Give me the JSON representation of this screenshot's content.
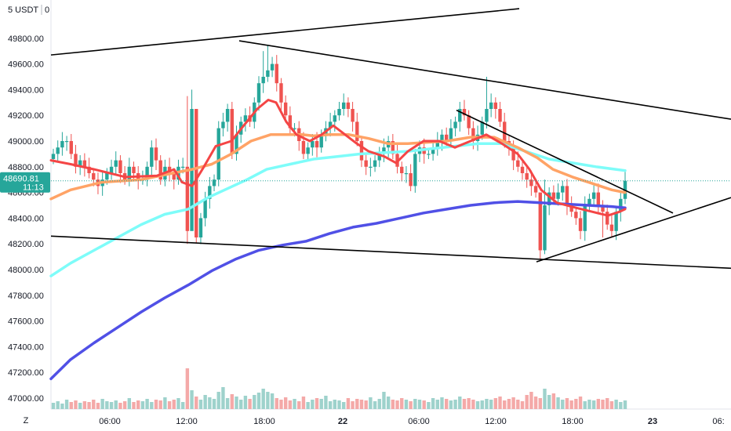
{
  "currency_label": "5 USDT",
  "tz_button": "Z",
  "current_price": {
    "value": "48690.81",
    "countdown": "11:13"
  },
  "colors": {
    "up": "#26a69a",
    "down": "#ef5350",
    "vol_up": "#9ed2cc",
    "vol_down": "#f4a9a8",
    "ema_fast": "#f44545",
    "ema_mid": "#ffa366",
    "ema_slow": "#7efcf9",
    "ema_long": "#5050e6",
    "trendline": "#000000",
    "price_tag": "#26a69a"
  },
  "chart_data": {
    "type": "candlestick",
    "instrument_unit": "USDT",
    "y_ticks": [
      "47000.00",
      "47200.00",
      "47400.00",
      "47600.00",
      "47800.00",
      "48000.00",
      "48200.00",
      "48400.00",
      "48600.00",
      "48800.00",
      "49000.00",
      "49200.00",
      "49400.00",
      "49600.00",
      "49800.00"
    ],
    "x_ticks": [
      "06:00",
      "12:00",
      "18:00",
      "22",
      "06:00",
      "12:00",
      "18:00",
      "23",
      "06:"
    ],
    "ylim": [
      46940,
      50030
    ],
    "last_price": 48690.81,
    "closes": [
      48900,
      48950,
      49000,
      49000,
      48900,
      48800,
      48850,
      48800,
      48750,
      48700,
      48650,
      48700,
      48750,
      48800,
      48850,
      48750,
      48700,
      48800,
      48750,
      48700,
      48700,
      48800,
      48950,
      48850,
      48700,
      48800,
      48750,
      48700,
      48800,
      48800,
      48300,
      49250,
      48250,
      48400,
      48550,
      48650,
      48700,
      49100,
      49150,
      49250,
      48900,
      49050,
      49150,
      49200,
      49150,
      49300,
      49450,
      49500,
      49550,
      49600,
      49450,
      49300,
      49200,
      49100,
      49100,
      49000,
      48900,
      48950,
      49000,
      48950,
      49050,
      49100,
      49150,
      49200,
      49250,
      49300,
      49250,
      49150,
      49000,
      48850,
      48800,
      48800,
      48850,
      48900,
      48950,
      49000,
      48900,
      48800,
      48750,
      48750,
      48650,
      48900,
      48950,
      48900,
      48900,
      48950,
      49000,
      49050,
      49000,
      49100,
      49150,
      49250,
      49200,
      49100,
      49000,
      49050,
      49150,
      49250,
      49300,
      49250,
      49150,
      49000,
      48950,
      48850,
      48800,
      48750,
      48700,
      48650,
      48600,
      48150,
      48500,
      48600,
      48550,
      48600,
      48650,
      48500,
      48450,
      48400,
      48300,
      48500,
      48550,
      48600,
      48500,
      48450,
      48350,
      48300,
      48450,
      48550,
      48690.81
    ],
    "highs_extra": [
      [
        30,
        49350
      ],
      [
        31,
        49400
      ],
      [
        32,
        48250
      ],
      [
        47,
        49700
      ],
      [
        48,
        49750
      ],
      [
        97,
        49500
      ],
      [
        109,
        48550
      ],
      [
        110,
        48700
      ]
    ],
    "lows_extra": [
      [
        31,
        48350
      ],
      [
        30,
        48200
      ],
      [
        109,
        48080
      ],
      [
        110,
        48120
      ],
      [
        123,
        48250
      ],
      [
        126,
        48230
      ]
    ],
    "volumes": [
      8,
      10,
      7,
      12,
      9,
      11,
      8,
      10,
      9,
      12,
      8,
      13,
      10,
      9,
      11,
      8,
      10,
      14,
      9,
      11,
      10,
      13,
      9,
      12,
      11,
      15,
      10,
      12,
      14,
      9,
      52,
      24,
      16,
      12,
      18,
      15,
      13,
      22,
      28,
      14,
      19,
      16,
      12,
      17,
      13,
      18,
      21,
      26,
      22,
      20,
      14,
      12,
      15,
      11,
      13,
      10,
      16,
      9,
      12,
      14,
      13,
      17,
      10,
      12,
      11,
      9,
      14,
      10,
      13,
      12,
      11,
      15,
      10,
      13,
      22,
      16,
      12,
      11,
      14,
      12,
      10,
      13,
      12,
      11,
      9,
      14,
      12,
      15,
      13,
      11,
      12,
      16,
      13,
      14,
      12,
      10,
      11,
      13,
      12,
      14,
      16,
      11,
      13,
      15,
      12,
      10,
      18,
      22,
      16,
      14,
      26,
      18,
      20,
      15,
      12,
      14,
      11,
      13,
      16,
      10,
      12,
      11,
      13,
      12,
      14,
      10,
      12,
      9,
      11
    ],
    "ema_fast": [
      [
        65,
        48850
      ],
      [
        90,
        48820
      ],
      [
        120,
        48780
      ],
      [
        160,
        48720
      ],
      [
        200,
        48730
      ],
      [
        222,
        48780
      ],
      [
        232,
        48680
      ],
      [
        245,
        48650
      ],
      [
        260,
        48800
      ],
      [
        275,
        48960
      ],
      [
        295,
        49000
      ],
      [
        312,
        49130
      ],
      [
        328,
        49250
      ],
      [
        342,
        49320
      ],
      [
        352,
        49300
      ],
      [
        365,
        49150
      ],
      [
        378,
        49050
      ],
      [
        395,
        49000
      ],
      [
        410,
        49050
      ],
      [
        425,
        49120
      ],
      [
        440,
        49050
      ],
      [
        455,
        48980
      ],
      [
        470,
        48920
      ],
      [
        490,
        48880
      ],
      [
        505,
        48830
      ],
      [
        520,
        48920
      ],
      [
        540,
        49000
      ],
      [
        560,
        49000
      ],
      [
        580,
        48950
      ],
      [
        600,
        49000
      ],
      [
        620,
        49050
      ],
      [
        640,
        48980
      ],
      [
        660,
        48900
      ],
      [
        675,
        48780
      ],
      [
        690,
        48620
      ],
      [
        710,
        48520
      ],
      [
        735,
        48480
      ],
      [
        755,
        48450
      ],
      [
        775,
        48420
      ],
      [
        790,
        48450
      ],
      [
        797,
        48470
      ]
    ],
    "ema_mid": [
      [
        65,
        48550
      ],
      [
        90,
        48620
      ],
      [
        130,
        48680
      ],
      [
        180,
        48700
      ],
      [
        220,
        48750
      ],
      [
        245,
        48780
      ],
      [
        270,
        48820
      ],
      [
        295,
        48900
      ],
      [
        320,
        49000
      ],
      [
        345,
        49050
      ],
      [
        365,
        49050
      ],
      [
        385,
        49050
      ],
      [
        400,
        49040
      ],
      [
        420,
        49050
      ],
      [
        445,
        49050
      ],
      [
        470,
        49020
      ],
      [
        495,
        48980
      ],
      [
        520,
        48980
      ],
      [
        545,
        48990
      ],
      [
        570,
        49000
      ],
      [
        600,
        49030
      ],
      [
        630,
        49030
      ],
      [
        660,
        48950
      ],
      [
        685,
        48870
      ],
      [
        705,
        48780
      ],
      [
        730,
        48720
      ],
      [
        755,
        48670
      ],
      [
        780,
        48620
      ],
      [
        797,
        48600
      ]
    ],
    "ema_slow": [
      [
        65,
        47950
      ],
      [
        90,
        48050
      ],
      [
        120,
        48150
      ],
      [
        150,
        48250
      ],
      [
        180,
        48350
      ],
      [
        210,
        48430
      ],
      [
        240,
        48470
      ],
      [
        265,
        48560
      ],
      [
        290,
        48630
      ],
      [
        315,
        48700
      ],
      [
        340,
        48780
      ],
      [
        370,
        48820
      ],
      [
        400,
        48860
      ],
      [
        430,
        48880
      ],
      [
        460,
        48900
      ],
      [
        490,
        48910
      ],
      [
        520,
        48920
      ],
      [
        550,
        48940
      ],
      [
        580,
        48960
      ],
      [
        610,
        48980
      ],
      [
        640,
        48980
      ],
      [
        670,
        48920
      ],
      [
        700,
        48860
      ],
      [
        730,
        48830
      ],
      [
        760,
        48800
      ],
      [
        785,
        48780
      ],
      [
        797,
        48770
      ]
    ],
    "ema_long": [
      [
        65,
        47150
      ],
      [
        90,
        47300
      ],
      [
        120,
        47430
      ],
      [
        150,
        47550
      ],
      [
        180,
        47670
      ],
      [
        210,
        47780
      ],
      [
        240,
        47880
      ],
      [
        270,
        47990
      ],
      [
        300,
        48080
      ],
      [
        330,
        48150
      ],
      [
        360,
        48190
      ],
      [
        390,
        48220
      ],
      [
        420,
        48280
      ],
      [
        450,
        48330
      ],
      [
        480,
        48360
      ],
      [
        510,
        48400
      ],
      [
        540,
        48440
      ],
      [
        570,
        48470
      ],
      [
        600,
        48500
      ],
      [
        630,
        48520
      ],
      [
        660,
        48530
      ],
      [
        690,
        48520
      ],
      [
        720,
        48510
      ],
      [
        750,
        48500
      ],
      [
        780,
        48490
      ],
      [
        797,
        48480
      ]
    ],
    "trendlines": [
      [
        [
          65,
          49670
        ],
        [
          662,
          50030
        ]
      ],
      [
        [
          305,
          49780
        ],
        [
          932,
          49170
        ]
      ],
      [
        [
          65,
          48260
        ],
        [
          932,
          48010
        ]
      ],
      [
        [
          582,
          49240
        ],
        [
          858,
          48440
        ]
      ],
      [
        [
          684,
          48060
        ],
        [
          932,
          48560
        ]
      ]
    ]
  }
}
